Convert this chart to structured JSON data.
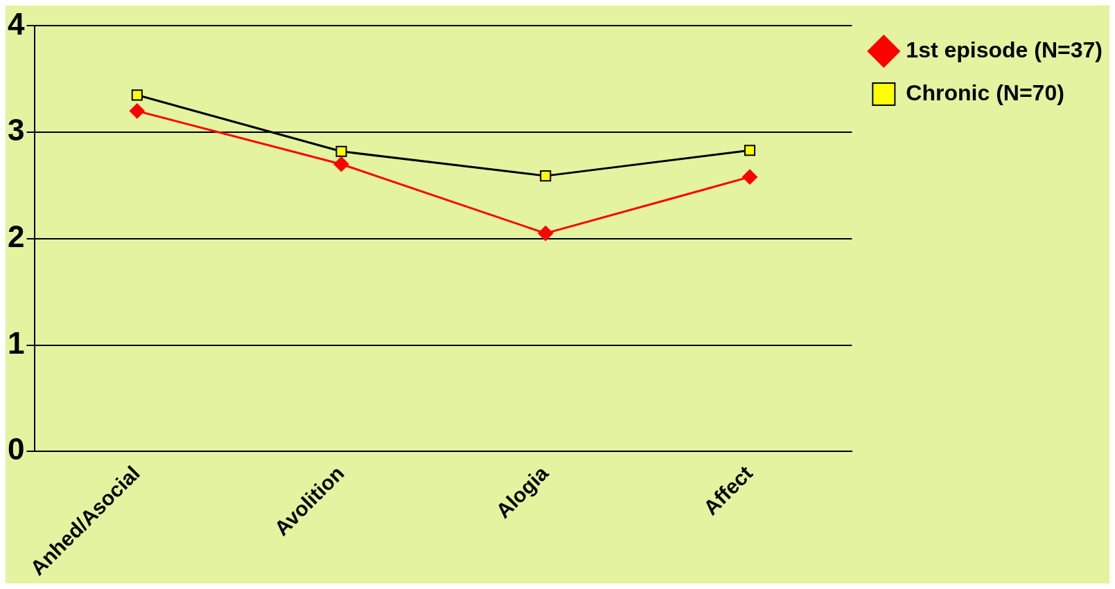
{
  "chart_data": {
    "type": "line",
    "categories": [
      "Anhed/Asocial",
      "Avolition",
      "Alogia",
      "Affect"
    ],
    "series": [
      {
        "name": "1st episode (N=37)",
        "color": "#ff0000",
        "marker": "diamond",
        "values": [
          3.2,
          2.7,
          2.05,
          2.58
        ]
      },
      {
        "name": "Chronic (N=70)",
        "color": "#000000",
        "marker": "square",
        "values": [
          3.35,
          2.82,
          2.59,
          2.83
        ]
      }
    ],
    "ylim": [
      0,
      4
    ],
    "yticks": [
      0,
      1,
      2,
      3,
      4
    ],
    "grid": "y",
    "legend": "top right",
    "line_style": "solid"
  }
}
